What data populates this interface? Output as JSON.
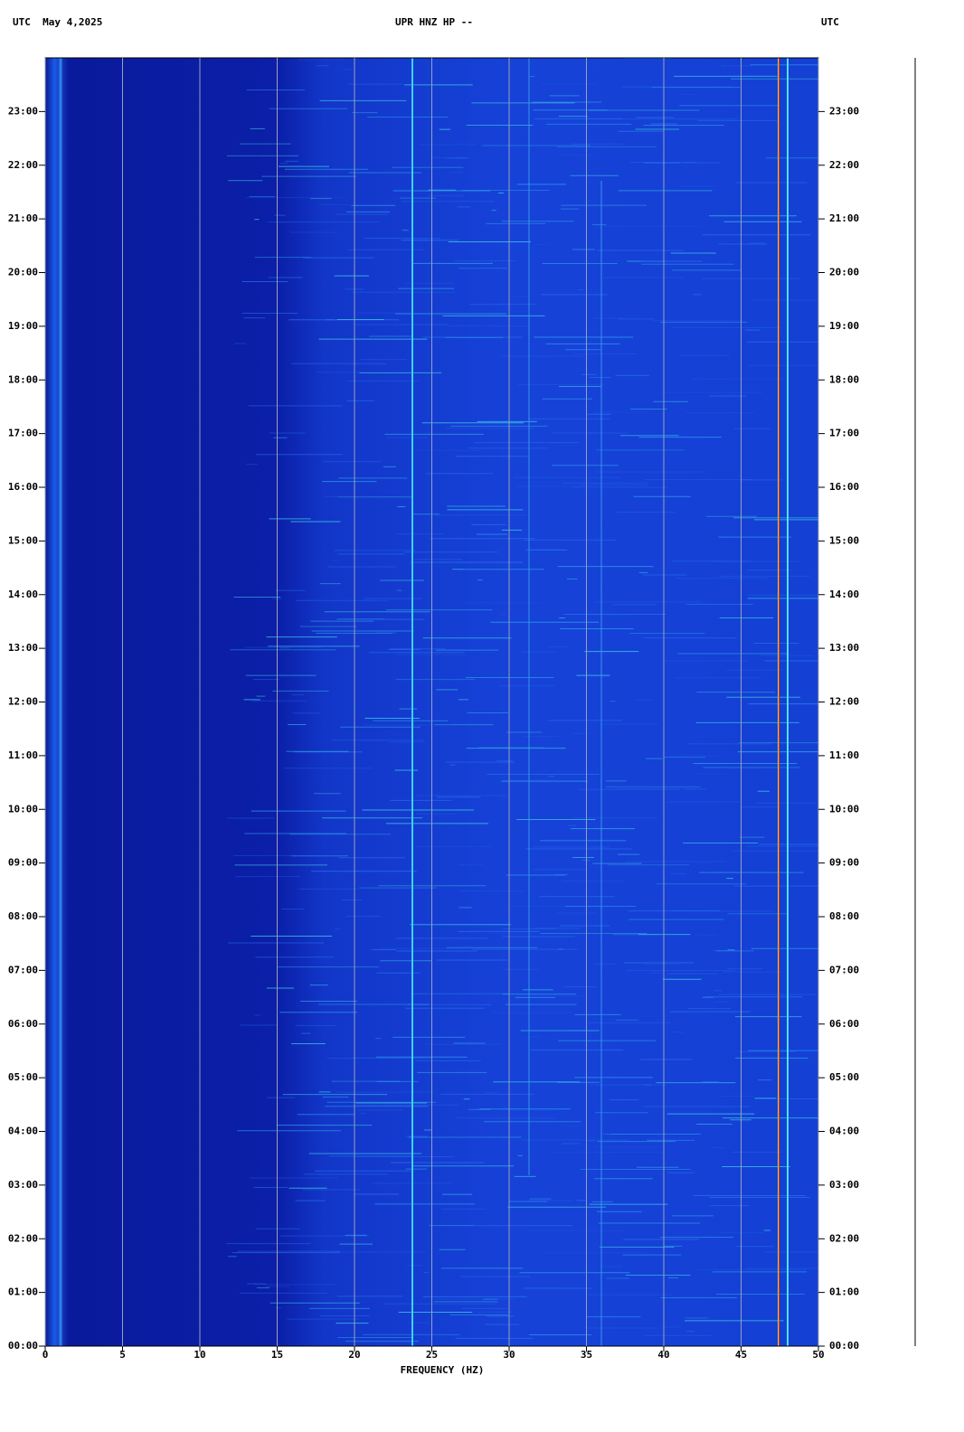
{
  "chart_data": {
    "type": "spectrogram",
    "title": "UPR HNZ HP --",
    "date_label": "UTC  May 4,2025",
    "right_label": "UTC",
    "x_label": "FREQUENCY (HZ)",
    "xlim": [
      0,
      50
    ],
    "xticks": [
      0,
      5,
      10,
      15,
      20,
      25,
      30,
      35,
      40,
      45,
      50
    ],
    "ylim": [
      0,
      24
    ],
    "yticks": [
      {
        "value": 0,
        "label": "00:00"
      },
      {
        "value": 1,
        "label": "01:00"
      },
      {
        "value": 2,
        "label": "02:00"
      },
      {
        "value": 3,
        "label": "03:00"
      },
      {
        "value": 4,
        "label": "04:00"
      },
      {
        "value": 5,
        "label": "05:00"
      },
      {
        "value": 6,
        "label": "06:00"
      },
      {
        "value": 7,
        "label": "07:00"
      },
      {
        "value": 8,
        "label": "08:00"
      },
      {
        "value": 9,
        "label": "09:00"
      },
      {
        "value": 10,
        "label": "10:00"
      },
      {
        "value": 11,
        "label": "11:00"
      },
      {
        "value": 12,
        "label": "12:00"
      },
      {
        "value": 13,
        "label": "13:00"
      },
      {
        "value": 14,
        "label": "14:00"
      },
      {
        "value": 15,
        "label": "15:00"
      },
      {
        "value": 16,
        "label": "16:00"
      },
      {
        "value": 17,
        "label": "17:00"
      },
      {
        "value": 18,
        "label": "18:00"
      },
      {
        "value": 19,
        "label": "19:00"
      },
      {
        "value": 20,
        "label": "20:00"
      },
      {
        "value": 21,
        "label": "21:00"
      },
      {
        "value": 22,
        "label": "22:00"
      },
      {
        "value": 23,
        "label": "23:00"
      }
    ],
    "grid": true
  }
}
